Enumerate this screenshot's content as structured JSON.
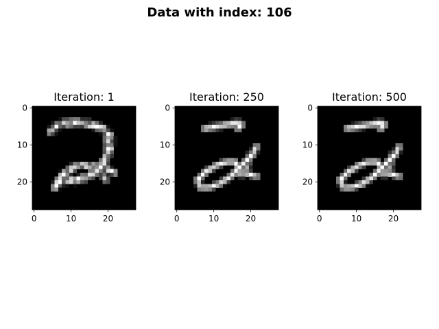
{
  "figure": {
    "suptitle": "Data with index: 106"
  },
  "chart_data": [
    {
      "type": "heatmap",
      "title": "Iteration: 1",
      "xlim": [
        0,
        28
      ],
      "ylim": [
        0,
        28
      ],
      "x_ticks": [
        0,
        10,
        20
      ],
      "y_ticks": [
        0,
        10,
        20
      ],
      "grid": false,
      "colormap": "gray",
      "strokes": [
        {
          "points": [
            [
              5,
              7
            ],
            [
              7,
              5
            ],
            [
              10,
              4.5
            ],
            [
              13,
              4.5
            ],
            [
              16,
              5
            ],
            [
              19,
              6
            ],
            [
              21,
              8
            ],
            [
              21,
              11
            ],
            [
              20,
              14
            ],
            [
              18,
              17
            ],
            [
              15,
              19
            ],
            [
              12,
              20
            ],
            [
              9,
              20
            ],
            [
              7,
              21
            ],
            [
              6,
              22
            ]
          ],
          "width": 1.6,
          "intensity": 0.85,
          "noise": 0.55
        },
        {
          "points": [
            [
              6,
              22
            ],
            [
              7,
              20
            ],
            [
              9,
              18
            ],
            [
              12,
              16
            ],
            [
              15,
              16
            ],
            [
              18,
              16
            ],
            [
              20,
              17
            ],
            [
              22,
              18
            ]
          ],
          "width": 1.5,
          "intensity": 0.85,
          "noise": 0.55
        },
        {
          "points": [
            [
              20,
              9
            ],
            [
              20,
              13
            ],
            [
              19,
              16
            ],
            [
              19,
              19
            ],
            [
              20,
              20
            ]
          ],
          "width": 1.3,
          "intensity": 0.8,
          "noise": 0.55
        }
      ]
    },
    {
      "type": "heatmap",
      "title": "Iteration: 250",
      "xlim": [
        0,
        28
      ],
      "ylim": [
        0,
        28
      ],
      "x_ticks": [
        0,
        10,
        20
      ],
      "y_ticks": [
        0,
        10,
        20
      ],
      "grid": false,
      "colormap": "gray",
      "strokes": [
        {
          "points": [
            [
              8,
              6
            ],
            [
              11,
              5.5
            ],
            [
              14,
              5
            ],
            [
              17,
              4.5
            ],
            [
              18,
              5
            ],
            [
              17,
              6
            ]
          ],
          "width": 1.4,
          "intensity": 1.0,
          "noise": 0.1
        },
        {
          "points": [
            [
              22,
              11
            ],
            [
              21,
              13
            ],
            [
              19,
              15
            ],
            [
              17,
              17
            ],
            [
              15,
              19
            ],
            [
              12,
              21
            ],
            [
              9,
              22
            ],
            [
              7,
              22
            ],
            [
              6,
              20
            ],
            [
              8,
              18
            ],
            [
              11,
              16
            ],
            [
              14,
              15
            ],
            [
              16,
              15
            ],
            [
              17,
              16
            ],
            [
              17,
              18
            ],
            [
              19,
              18
            ],
            [
              22,
              19
            ]
          ],
          "width": 1.3,
          "intensity": 1.0,
          "noise": 0.1
        },
        {
          "points": [
            [
              20,
              13
            ],
            [
              20,
              16
            ],
            [
              18,
              19
            ]
          ],
          "width": 0.9,
          "intensity": 0.75,
          "noise": 0.1
        }
      ]
    },
    {
      "type": "heatmap",
      "title": "Iteration: 500",
      "xlim": [
        0,
        28
      ],
      "ylim": [
        0,
        28
      ],
      "x_ticks": [
        0,
        10,
        20
      ],
      "y_ticks": [
        0,
        10,
        20
      ],
      "grid": false,
      "colormap": "gray",
      "strokes": [
        {
          "points": [
            [
              8,
              6
            ],
            [
              11,
              5.5
            ],
            [
              14,
              5
            ],
            [
              17,
              4.5
            ],
            [
              18,
              5
            ],
            [
              17,
              6
            ]
          ],
          "width": 1.4,
          "intensity": 1.0,
          "noise": 0.08
        },
        {
          "points": [
            [
              22,
              11
            ],
            [
              21,
              13
            ],
            [
              19,
              15
            ],
            [
              17,
              17
            ],
            [
              15,
              19
            ],
            [
              12,
              21
            ],
            [
              9,
              22
            ],
            [
              7,
              22
            ],
            [
              6,
              20
            ],
            [
              8,
              18
            ],
            [
              11,
              16
            ],
            [
              14,
              15
            ],
            [
              16,
              15
            ],
            [
              17,
              16
            ],
            [
              17,
              18
            ],
            [
              19,
              18
            ],
            [
              22,
              19
            ]
          ],
          "width": 1.3,
          "intensity": 1.0,
          "noise": 0.08
        },
        {
          "points": [
            [
              20,
              13
            ],
            [
              20,
              16
            ],
            [
              18,
              19
            ]
          ],
          "width": 0.9,
          "intensity": 0.75,
          "noise": 0.08
        }
      ]
    }
  ]
}
